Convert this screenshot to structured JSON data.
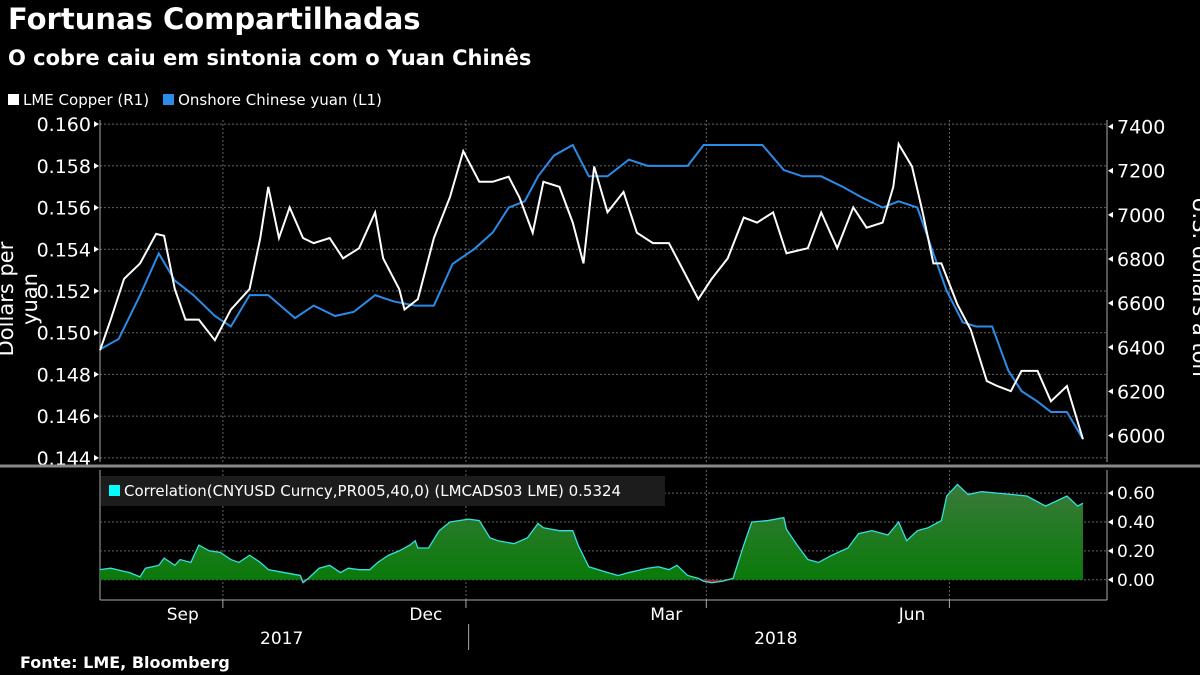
{
  "title": "Fortunas Compartilhadas",
  "subtitle": "O cobre caiu em sintonia com o Yuan Chinês",
  "source": "Fonte: LME, Bloomberg",
  "colors": {
    "copper": "#ffffff",
    "yuan": "#2b8ce8",
    "correlation_line": "#33e0e0",
    "correlation_fill": "#1a8a1a",
    "negative_fill": "#a02020"
  },
  "chart_data": [
    {
      "type": "line",
      "x_unit": "days since 2017-08-16",
      "legend": [
        "LME Copper (R1)",
        "Onshore Chinese yuan (L1)"
      ],
      "ylabel_left": "Dollars per yuan",
      "ylabel_right": "U.S. dollars a ton",
      "yticks_left": [
        "0.160",
        "0.158",
        "0.156",
        "0.154",
        "0.152",
        "0.150",
        "0.148",
        "0.146",
        "0.144"
      ],
      "ylim_left": [
        0.1438,
        0.1602
      ],
      "yticks_right": [
        "7400",
        "7200",
        "7000",
        "6800",
        "6600",
        "6400",
        "6200",
        "6000"
      ],
      "ylim_right": [
        5880,
        7430
      ],
      "series": [
        {
          "name": "Onshore Chinese yuan",
          "axis": "left",
          "x": [
            0,
            7,
            15,
            22,
            28,
            35,
            43,
            49,
            56,
            63,
            73,
            80,
            88,
            95,
            103,
            110,
            118,
            125,
            132,
            140,
            147,
            153,
            159,
            164,
            170,
            177,
            183,
            190,
            198,
            205,
            213,
            220,
            226,
            233,
            241,
            248,
            256,
            263,
            270,
            278,
            285,
            293,
            299,
            306,
            312,
            317,
            323,
            328,
            334,
            340,
            345,
            351,
            356,
            362,
            368
          ],
          "y": [
            0.1492,
            0.1497,
            0.1518,
            0.1538,
            0.1525,
            0.1518,
            0.1508,
            0.1503,
            0.1518,
            0.1518,
            0.1507,
            0.1513,
            0.1508,
            0.151,
            0.1518,
            0.1515,
            0.1513,
            0.1513,
            0.1533,
            0.154,
            0.1548,
            0.156,
            0.1563,
            0.1575,
            0.1585,
            0.159,
            0.1575,
            0.1575,
            0.1583,
            0.158,
            0.158,
            0.158,
            0.159,
            0.159,
            0.159,
            0.159,
            0.1578,
            0.1575,
            0.1575,
            0.157,
            0.1565,
            0.156,
            0.1563,
            0.156,
            0.1538,
            0.152,
            0.1505,
            0.1503,
            0.1503,
            0.1482,
            0.1472,
            0.1467,
            0.1462,
            0.1462,
            0.1449
          ]
        },
        {
          "name": "LME Copper",
          "axis": "right",
          "x": [
            0,
            4,
            9,
            15,
            21,
            24,
            28,
            32,
            37,
            43,
            49,
            56,
            60,
            63,
            67,
            71,
            76,
            80,
            86,
            91,
            97,
            103,
            106,
            112,
            114,
            119,
            125,
            131,
            136,
            142,
            147,
            153,
            157,
            162,
            166,
            172,
            177,
            181,
            185,
            190,
            196,
            201,
            207,
            213,
            218,
            224,
            229,
            235,
            241,
            246,
            252,
            257,
            265,
            270,
            276,
            282,
            287,
            293,
            297,
            299,
            304,
            308,
            312,
            315,
            321,
            326,
            332,
            336,
            341,
            345,
            351,
            356,
            362,
            368
          ],
          "y": [
            6386,
            6525,
            6710,
            6780,
            6914,
            6905,
            6664,
            6525,
            6525,
            6432,
            6571,
            6664,
            6895,
            7127,
            6895,
            7034,
            6895,
            6872,
            6895,
            6803,
            6849,
            7011,
            6803,
            6664,
            6571,
            6618,
            6895,
            7080,
            7289,
            7150,
            7150,
            7173,
            7080,
            6919,
            7150,
            7127,
            6965,
            6780,
            7219,
            7012,
            7104,
            6919,
            6872,
            6872,
            6757,
            6618,
            6710,
            6803,
            6988,
            6965,
            7011,
            6826,
            6849,
            7011,
            6849,
            7034,
            6942,
            6965,
            7127,
            7321,
            7219,
            7011,
            6780,
            6780,
            6594,
            6479,
            6247,
            6224,
            6201,
            6293,
            6293,
            6155,
            6224,
            5983
          ]
        }
      ]
    },
    {
      "type": "area",
      "label": "Correlation(CNYUSD Curncy,PR005,40,0) (LMCADS03 LME) 0.5324",
      "yticks": [
        "0.60",
        "0.40",
        "0.20",
        "0.00"
      ],
      "ylim": [
        -0.14,
        0.76
      ],
      "x": [
        0,
        4,
        11,
        15,
        17,
        22,
        24,
        28,
        30,
        34,
        37,
        41,
        45,
        49,
        52,
        56,
        60,
        63,
        69,
        75,
        76,
        78,
        82,
        86,
        90,
        93,
        97,
        101,
        104,
        108,
        112,
        116,
        118,
        119,
        123,
        127,
        131,
        138,
        142,
        146,
        149,
        155,
        160,
        164,
        166,
        172,
        177,
        179,
        183,
        190,
        194,
        198,
        205,
        209,
        213,
        216,
        220,
        224,
        226,
        229,
        233,
        237,
        241,
        244,
        250,
        256,
        257,
        261,
        265,
        269,
        274,
        280,
        284,
        289,
        295,
        299,
        302,
        306,
        310,
        315,
        317,
        321,
        325,
        330,
        336,
        347,
        354,
        362,
        366,
        368
      ],
      "y": [
        0.07,
        0.08,
        0.05,
        0.02,
        0.08,
        0.1,
        0.15,
        0.1,
        0.14,
        0.12,
        0.24,
        0.2,
        0.19,
        0.14,
        0.12,
        0.17,
        0.12,
        0.07,
        0.05,
        0.03,
        -0.02,
        0.01,
        0.08,
        0.1,
        0.05,
        0.08,
        0.07,
        0.07,
        0.12,
        0.17,
        0.2,
        0.24,
        0.27,
        0.22,
        0.22,
        0.34,
        0.4,
        0.42,
        0.41,
        0.29,
        0.27,
        0.25,
        0.29,
        0.39,
        0.36,
        0.34,
        0.34,
        0.24,
        0.09,
        0.05,
        0.03,
        0.05,
        0.08,
        0.09,
        0.07,
        0.1,
        0.03,
        0.01,
        -0.01,
        -0.02,
        -0.01,
        0.01,
        0.24,
        0.4,
        0.41,
        0.43,
        0.35,
        0.24,
        0.14,
        0.12,
        0.17,
        0.22,
        0.32,
        0.34,
        0.31,
        0.4,
        0.27,
        0.34,
        0.36,
        0.41,
        0.58,
        0.66,
        0.59,
        0.61,
        0.6,
        0.58,
        0.51,
        0.58,
        0.51,
        0.53
      ]
    }
  ],
  "x_axis": {
    "months": [
      {
        "label": "Sep",
        "day": 31
      },
      {
        "label": "Dec",
        "day": 122
      },
      {
        "label": "Mar",
        "day": 212
      },
      {
        "label": "Jun",
        "day": 304
      }
    ],
    "years": [
      {
        "label": "2017",
        "day": 68
      },
      {
        "label": "2018",
        "day": 253
      }
    ],
    "quarter_days": [
      46,
      137,
      227,
      318
    ],
    "year_boundary_day": 138,
    "range": [
      0,
      377
    ]
  }
}
